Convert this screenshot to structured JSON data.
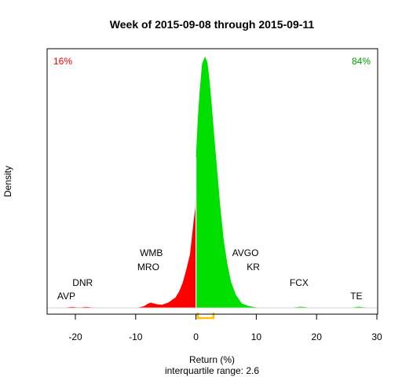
{
  "chart_data": {
    "type": "area",
    "title": "Week of 2015-09-08 through 2015-09-11",
    "xlabel": "Return (%)",
    "ylabel": "Density",
    "subtitle": "interquartile range: 2.6",
    "xlim": [
      -25,
      30
    ],
    "xticks": [
      -20,
      -10,
      0,
      10,
      20,
      30
    ],
    "xtick_labels": [
      "-20",
      "-10",
      "0",
      "10",
      "20",
      "30"
    ],
    "grid": false,
    "colors": {
      "negative": "#ff0000",
      "positive": "#00e000",
      "iqr": "#ffc000",
      "baseline": "#d3d3d3"
    },
    "pct_negative": "16%",
    "pct_positive": "84%",
    "iqr": [
      0.3,
      2.9
    ],
    "density": {
      "x": [
        -25.5,
        -22.0,
        -21.2,
        -20.4,
        -19.8,
        -19.0,
        -18.2,
        -17.4,
        -14.0,
        -9.6,
        -8.6,
        -8.0,
        -7.5,
        -7.0,
        -6.4,
        -5.6,
        -4.6,
        -3.4,
        -2.8,
        -2.2,
        -1.6,
        -1.0,
        -0.4,
        -0.1,
        0.0,
        0.3,
        0.6,
        1.0,
        1.5,
        1.9,
        2.2,
        2.6,
        3.0,
        3.5,
        4.0,
        4.6,
        5.2,
        5.8,
        6.6,
        7.6,
        8.8,
        10.0,
        11.5,
        15.0,
        16.6,
        17.4,
        18.3,
        19.5,
        25.3,
        26.3,
        27.0,
        27.8,
        29.5,
        30.7
      ],
      "y": [
        0,
        0,
        0.002,
        0.0035,
        0.0015,
        0.0015,
        0.0035,
        0.0015,
        0,
        0.001,
        0.006,
        0.014,
        0.018,
        0.015,
        0.012,
        0.011,
        0.018,
        0.035,
        0.055,
        0.085,
        0.13,
        0.18,
        0.29,
        0.34,
        0.51,
        0.64,
        0.73,
        0.825,
        0.85,
        0.83,
        0.78,
        0.69,
        0.59,
        0.47,
        0.35,
        0.23,
        0.15,
        0.09,
        0.045,
        0.015,
        0.006,
        0.0015,
        0,
        0,
        0.002,
        0.004,
        0.002,
        0,
        0,
        0.002,
        0.004,
        0.002,
        0,
        0
      ]
    },
    "annotations": [
      {
        "label": "AVP",
        "x": -21.5,
        "y": 0.04
      },
      {
        "label": "DNR",
        "x": -18.8,
        "y": 0.085
      },
      {
        "label": "WMB",
        "x": -7.4,
        "y": 0.186
      },
      {
        "label": "MRO",
        "x": -7.9,
        "y": 0.138
      },
      {
        "label": "AVGO",
        "x": 8.2,
        "y": 0.186
      },
      {
        "label": "KR",
        "x": 9.5,
        "y": 0.138
      },
      {
        "label": "FCX",
        "x": 17.1,
        "y": 0.085
      },
      {
        "label": "TE",
        "x": 26.6,
        "y": 0.04
      }
    ]
  }
}
